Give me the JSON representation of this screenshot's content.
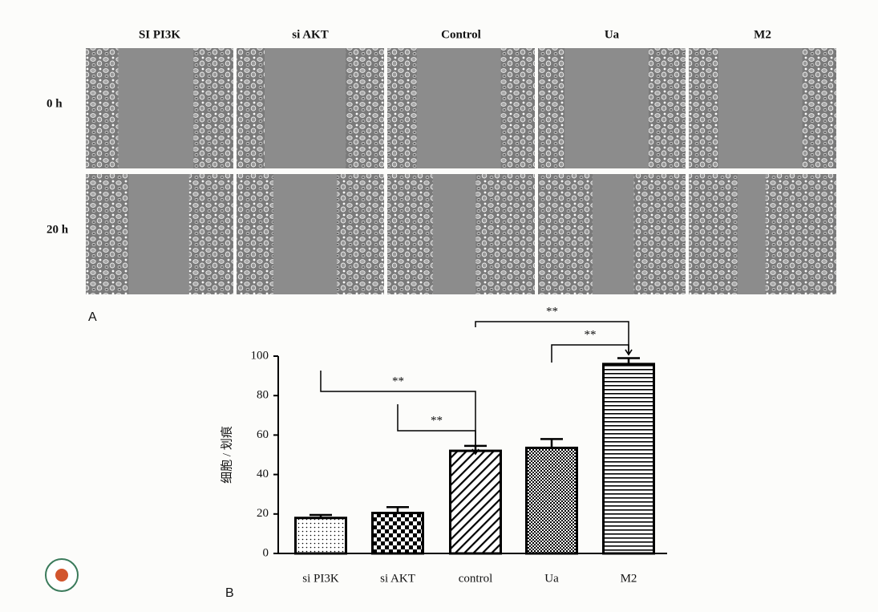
{
  "panel_a": {
    "label": "A",
    "columns": [
      "SI PI3K",
      "si AKT",
      "Control",
      "Ua",
      "M2"
    ],
    "rows": [
      "0 h",
      "20 h"
    ]
  },
  "panel_b_label": "B",
  "chart_data": {
    "type": "bar",
    "y_label": "细胞 / 划痕",
    "categories": [
      "si PI3K",
      "si AKT",
      "control",
      "Ua",
      "M2"
    ],
    "values": [
      18,
      20.5,
      52,
      53.5,
      96
    ],
    "errors": [
      1.5,
      3,
      2.5,
      4.5,
      3
    ],
    "color": "#000000",
    "ylim": [
      0,
      100
    ],
    "yticks": [
      0,
      20,
      40,
      60,
      80,
      100
    ],
    "grid": false,
    "annotations": [
      "**",
      "**",
      "**",
      "**"
    ]
  }
}
